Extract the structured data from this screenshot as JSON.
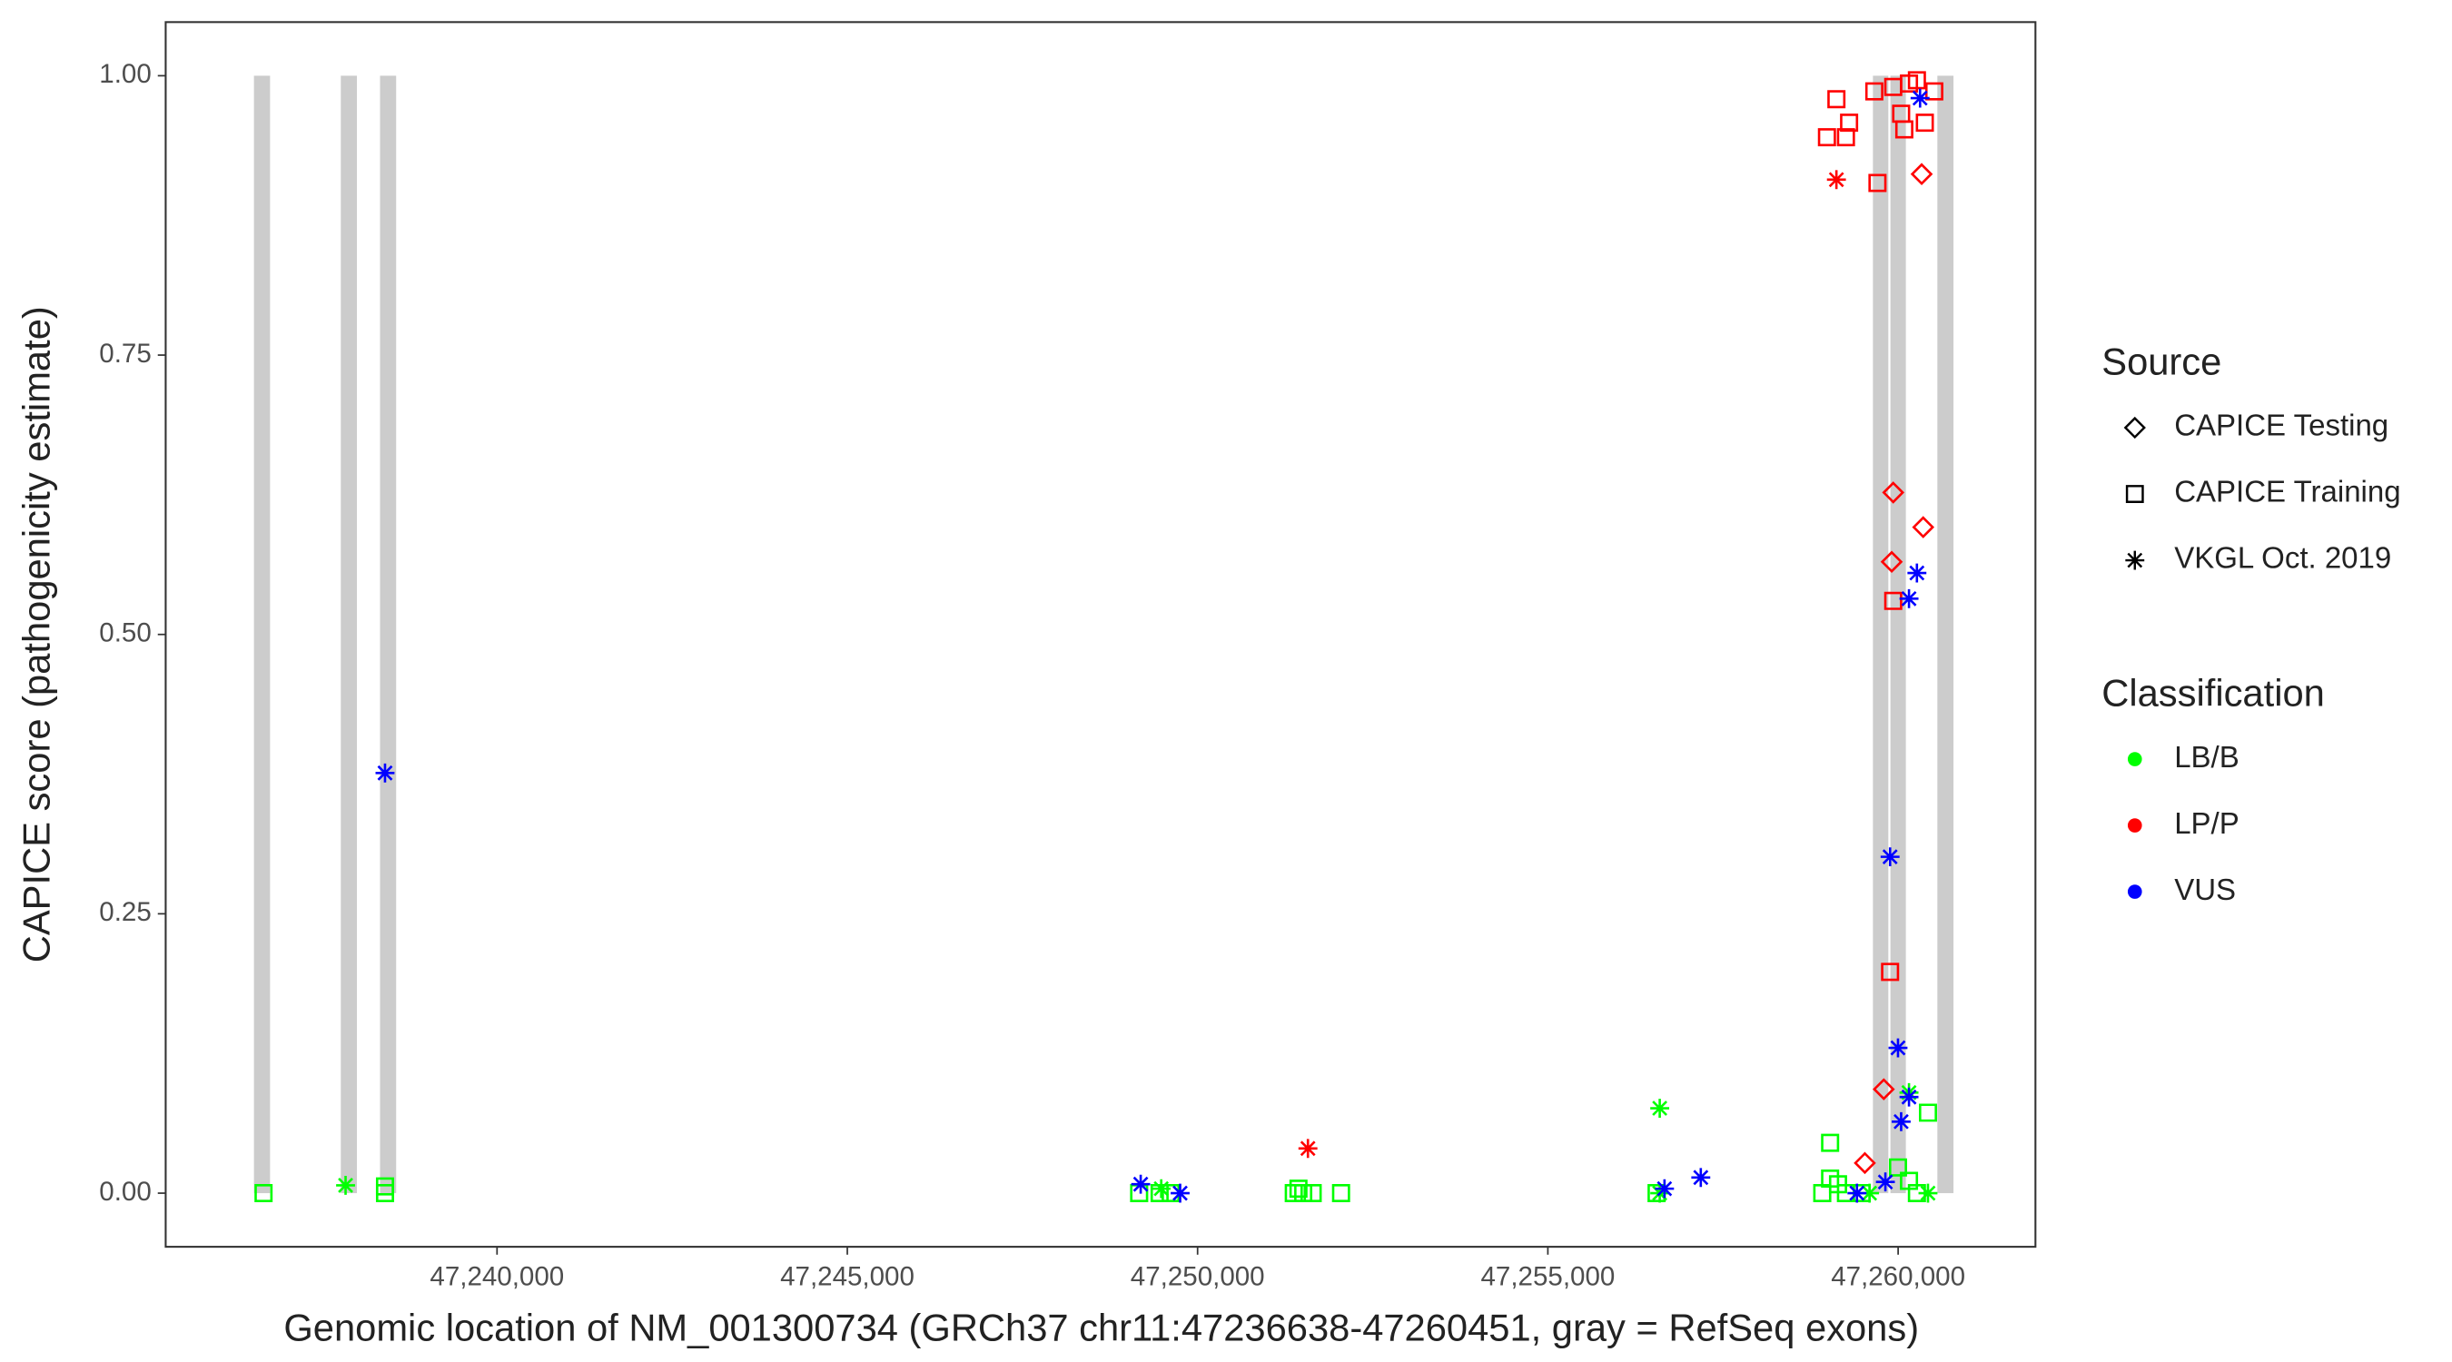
{
  "chart_data": {
    "type": "scatter",
    "x_label": "Genomic location of NM_001300734 (GRCh37 chr11:47236638-47260451, gray = RefSeq exons)",
    "y_label": "CAPICE score (pathogenicity estimate)",
    "xlim": [
      47235270,
      47261960
    ],
    "ylim": [
      -0.048,
      1.048
    ],
    "xticks": [
      {
        "value": 47240000,
        "label": "47,240,000"
      },
      {
        "value": 47245000,
        "label": "47,245,000"
      },
      {
        "value": 47250000,
        "label": "47,250,000"
      },
      {
        "value": 47255000,
        "label": "47,255,000"
      },
      {
        "value": 47260000,
        "label": "47,260,000"
      }
    ],
    "yticks": [
      {
        "value": 0,
        "label": "0.00"
      },
      {
        "value": 0.25,
        "label": "0.25"
      },
      {
        "value": 0.5,
        "label": "0.50"
      },
      {
        "value": 0.75,
        "label": "0.75"
      },
      {
        "value": 1,
        "label": "1.00"
      }
    ],
    "grid": false,
    "exon_color": "#cccccc",
    "exon_ylim": [
      0,
      1
    ],
    "exons": [
      [
        47236530,
        47236760
      ],
      [
        47237770,
        47238000
      ],
      [
        47238330,
        47238560
      ],
      [
        47259640,
        47259860
      ],
      [
        47259890,
        47260110
      ],
      [
        47260560,
        47260790
      ]
    ],
    "legend": {
      "source_title": "Source",
      "sources": [
        {
          "name": "CAPICE Testing",
          "shape": "diamond"
        },
        {
          "name": "CAPICE Training",
          "shape": "square"
        },
        {
          "name": "VKGL Oct. 2019",
          "shape": "asterisk"
        }
      ],
      "classification_title": "Classification",
      "classifications": [
        {
          "name": "LB/B",
          "color": "#00ff00"
        },
        {
          "name": "LP/P",
          "color": "#ff0000"
        },
        {
          "name": "VUS",
          "color": "#0000ff"
        }
      ]
    },
    "series": [
      {
        "source": "CAPICE Training",
        "classification": "LB/B",
        "x": [
          47236667,
          47238401,
          47238401,
          47249166,
          47249458,
          47249616,
          47251373,
          47251440,
          47251508,
          47251643,
          47252048,
          47256552,
          47258917,
          47259029,
          47259029,
          47259142,
          47259255,
          47259480,
          47259998,
          47260155,
          47260268,
          47260426
        ],
        "y": [
          0,
          0,
          0.006,
          0,
          0,
          0,
          0,
          0.004,
          0,
          0,
          0,
          0,
          0,
          0.013,
          0.045,
          0.008,
          0,
          0,
          0.023,
          0.011,
          0,
          0.072
        ]
      },
      {
        "source": "VKGL Oct. 2019",
        "classification": "LB/B",
        "x": [
          47237838,
          47249481,
          47256597,
          47256597,
          47260155,
          47259592,
          47260426
        ],
        "y": [
          0.007,
          0.004,
          0.076,
          0,
          0.09,
          0,
          0
        ]
      },
      {
        "source": "CAPICE Training",
        "classification": "LP/P",
        "x": [
          47259119,
          47259300,
          47258984,
          47259255,
          47259660,
          47259930,
          47260043,
          47260088,
          47260155,
          47260268,
          47260381,
          47260516,
          47259705,
          47259930,
          47259885
        ],
        "y": [
          0.979,
          0.958,
          0.945,
          0.945,
          0.986,
          0.99,
          0.966,
          0.952,
          0.993,
          0.996,
          0.958,
          0.986,
          0.904,
          0.53,
          0.198
        ]
      },
      {
        "source": "CAPICE Testing",
        "classification": "LP/P",
        "x": [
          47260336,
          47259930,
          47260358,
          47259908,
          47259795,
          47259525
        ],
        "y": [
          0.912,
          0.627,
          0.596,
          0.565,
          0.093,
          0.027
        ]
      },
      {
        "source": "VKGL Oct. 2019",
        "classification": "LP/P",
        "x": [
          47259119,
          47251575
        ],
        "y": [
          0.907,
          0.04
        ]
      },
      {
        "source": "VKGL Oct. 2019",
        "classification": "VUS",
        "x": [
          47238401,
          47249188,
          47249751,
          47256665,
          47257183,
          47259885,
          47260268,
          47260155,
          47259998,
          47260043,
          47260155,
          47259818,
          47259412,
          47260313
        ],
        "y": [
          0.376,
          0.008,
          0,
          0.004,
          0.014,
          0.301,
          0.555,
          0.532,
          0.13,
          0.064,
          0.086,
          0.01,
          0,
          0.98
        ]
      }
    ]
  }
}
